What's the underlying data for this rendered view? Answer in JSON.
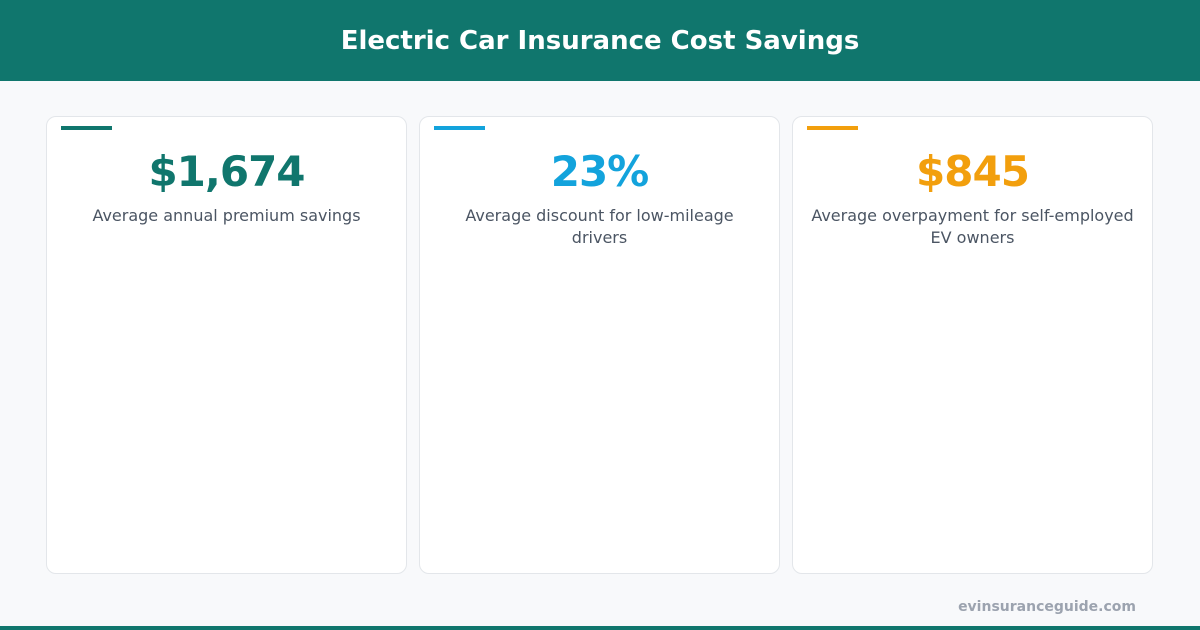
{
  "header": {
    "title": "Electric Car Insurance Cost Savings"
  },
  "cards": [
    {
      "value": "$1,674",
      "label": "Average annual premium savings"
    },
    {
      "value": "23%",
      "label": "Average discount for low-mileage drivers"
    },
    {
      "value": "$845",
      "label": "Average overpayment for self-employed EV owners"
    }
  ],
  "footer": {
    "source": "evinsuranceguide.com"
  }
}
